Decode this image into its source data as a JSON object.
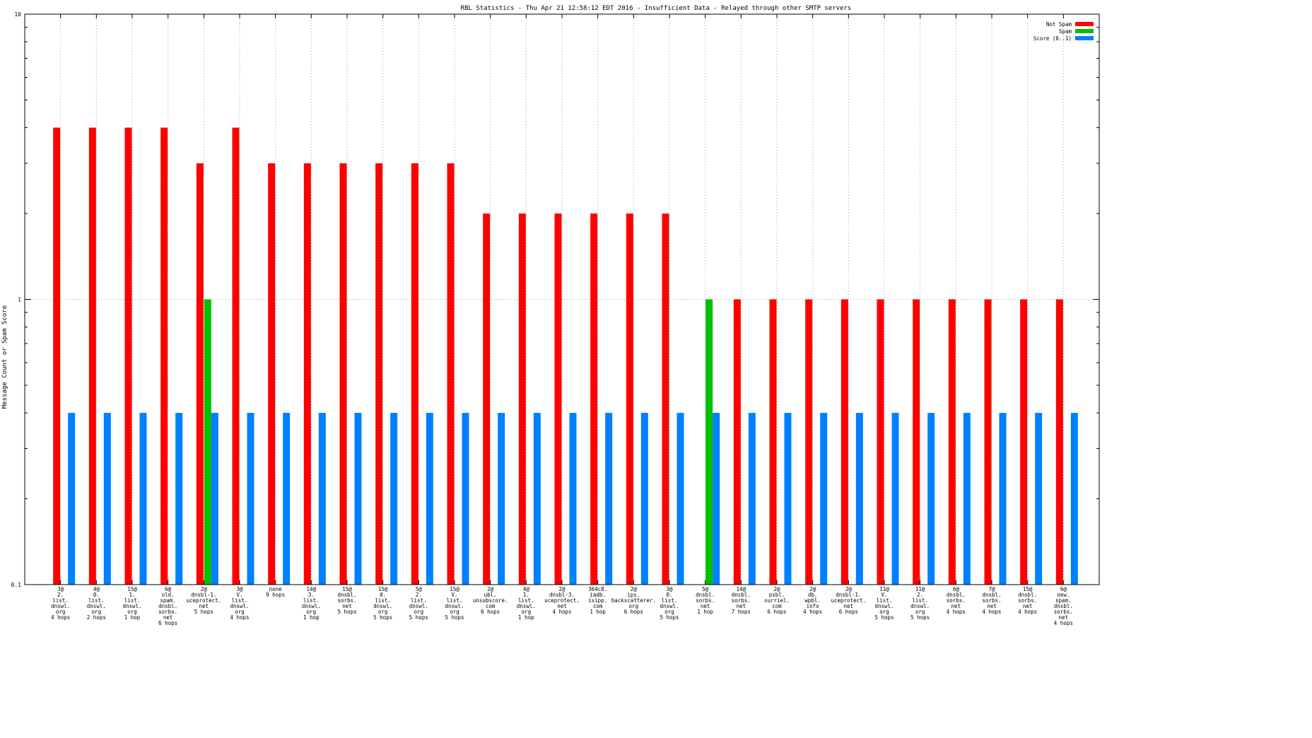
{
  "chart_data": {
    "type": "bar",
    "title": "RBL Statistics - Thu Apr 21 12:58:12 EDT 2016 - Insufficient Data - Relayed through other SMTP servers",
    "ylabel": "Message Count or Spam Score",
    "xlabel": "",
    "yscale": "log",
    "ylim": [
      0.1,
      10
    ],
    "yticks": [
      "0.1",
      "1",
      "10"
    ],
    "grid": true,
    "legend_position": "top-right",
    "colors": {
      "Not Spam": "#ff0000",
      "Spam": "#00c000",
      "Score (0..1)": "#0080ff"
    },
    "categories": [
      [
        "3@",
        "2.",
        "list.",
        "dnswl.",
        "org",
        "4 hops"
      ],
      [
        "4@",
        "0.",
        "list.",
        "dnswl.",
        "org",
        "2 hops"
      ],
      [
        "15@",
        "1.",
        "list.",
        "dnswl.",
        "org",
        "1 hop"
      ],
      [
        "6@",
        "old.",
        "spam.",
        "dnsbl.",
        "sorbs.",
        "net",
        "6 hops"
      ],
      [
        "2@",
        "dnsbl-1.",
        "uceprotect.",
        "net",
        "5 hops"
      ],
      [
        "3@",
        "V.",
        "list.",
        "dnswl.",
        "org",
        "4 hops"
      ],
      [
        "none",
        "9 hops"
      ],
      [
        "14@",
        "3.",
        "list.",
        "dnswl.",
        "org",
        "1 hop"
      ],
      [
        "15@",
        "dnsbl.",
        "sorbs.",
        "net",
        "5 hops"
      ],
      [
        "15@",
        "0.",
        "list.",
        "dnswl.",
        "org",
        "5 hops"
      ],
      [
        "5@",
        "2.",
        "list.",
        "dnswl.",
        "org",
        "5 hops"
      ],
      [
        "15@",
        "V.",
        "list.",
        "dnswl.",
        "org",
        "5 hops"
      ],
      [
        "2@",
        "ubl.",
        "unsubscore.",
        "com",
        "6 hops"
      ],
      [
        "4@",
        "1.",
        "list.",
        "dnswl.",
        "org",
        "1 hop"
      ],
      [
        "2@",
        "dnsbl-3.",
        "uceprotect.",
        "net",
        "4 hops"
      ],
      [
        "364c8.",
        "iadb.",
        "isipp.",
        "com",
        "1 hop"
      ],
      [
        "2@",
        "ips.",
        "backscatterer.",
        "org",
        "6 hops"
      ],
      [
        "3@",
        "0.",
        "list.",
        "dnswl.",
        "org",
        "5 hops"
      ],
      [
        "5@",
        "dnsbl.",
        "sorbs.",
        "net",
        "1 hop"
      ],
      [
        "14@",
        "dnsbl.",
        "sorbs.",
        "net",
        "7 hops"
      ],
      [
        "2@",
        "psbl.",
        "surriel.",
        "com",
        "6 hops"
      ],
      [
        "2@",
        "db.",
        "wpbl.",
        "info",
        "4 hops"
      ],
      [
        "2@",
        "dnsbl-1.",
        "uceprotect.",
        "net",
        "6 hops"
      ],
      [
        "11@",
        "V.",
        "list.",
        "dnswl.",
        "org",
        "5 hops"
      ],
      [
        "11@",
        "2.",
        "list.",
        "dnswl.",
        "org",
        "5 hops"
      ],
      [
        "6@",
        "dnsbl.",
        "sorbs.",
        "net",
        "4 hops"
      ],
      [
        "7@",
        "dnsbl.",
        "sorbs.",
        "net",
        "4 hops"
      ],
      [
        "15@",
        "dnsbl.",
        "sorbs.",
        "net",
        "4 hops"
      ],
      [
        "6@",
        "new.",
        "spam.",
        "dnsbl.",
        "sorbs.",
        "net",
        "4 hops"
      ]
    ],
    "series": [
      {
        "name": "Not Spam",
        "values": [
          4,
          4,
          4,
          4,
          3,
          4,
          3,
          3,
          3,
          3,
          3,
          3,
          2,
          2,
          2,
          2,
          2,
          2,
          0,
          1,
          1,
          1,
          1,
          1,
          1,
          1,
          1,
          1,
          1
        ]
      },
      {
        "name": "Spam",
        "values": [
          0,
          0,
          0,
          0,
          1,
          0,
          0,
          0,
          0,
          0,
          0,
          0,
          0,
          0,
          0,
          0,
          0,
          0,
          1,
          0,
          0,
          0,
          0,
          0,
          0,
          0,
          0,
          0,
          0
        ]
      },
      {
        "name": "Score (0..1)",
        "values": [
          0.4,
          0.4,
          0.4,
          0.4,
          0.4,
          0.4,
          0.4,
          0.4,
          0.4,
          0.4,
          0.4,
          0.4,
          0.4,
          0.4,
          0.4,
          0.4,
          0.4,
          0.4,
          0.4,
          0.4,
          0.4,
          0.4,
          0.4,
          0.4,
          0.4,
          0.4,
          0.4,
          0.4,
          0.4
        ]
      }
    ]
  }
}
